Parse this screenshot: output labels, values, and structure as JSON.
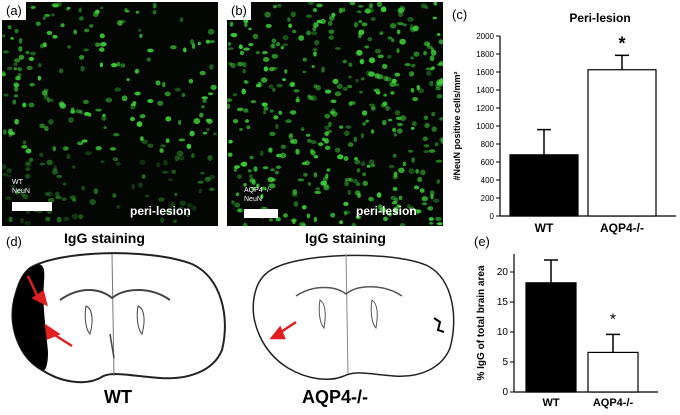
{
  "panel_a": {
    "letter": "(a)",
    "label_line1": "WT",
    "label_line2": "NeuN",
    "region_text": "peri-lesion",
    "cell_color": "#3fd23a"
  },
  "panel_b": {
    "letter": "(b)",
    "label_line1": "AQP4 -/-",
    "label_line2": "NeuN",
    "region_text": "peri-lesion",
    "cell_color": "#3fd23a"
  },
  "panel_c": {
    "letter": "(c)",
    "significance_mark": "*"
  },
  "panel_d": {
    "letter": "(d)",
    "left_title": "IgG staining",
    "right_title": "IgG staining",
    "left_label": "WT",
    "right_label": "AQP4-/-",
    "arrow_color": "#e02020"
  },
  "panel_e": {
    "letter": "(e)",
    "significance_mark": "*"
  },
  "chart_data": [
    {
      "type": "bar",
      "title": "Peri-lesion",
      "categories": [
        "WT",
        "AQP4-/-"
      ],
      "values": [
        680,
        1625
      ],
      "errors": [
        280,
        160
      ],
      "bar_fill": [
        "#000000",
        "#ffffff"
      ],
      "ylabel": "#NeuN positive cells/mm²",
      "ylim": [
        0,
        2000
      ],
      "yticks": [
        "0",
        "200",
        "400",
        "600",
        "800",
        "1000",
        "1200",
        "1400",
        "1600",
        "1800",
        "2000"
      ],
      "grid": false
    },
    {
      "type": "bar",
      "title": "",
      "categories": [
        "WT",
        "AQP4-/-"
      ],
      "values": [
        18.2,
        6.6
      ],
      "errors": [
        3.8,
        3.0
      ],
      "bar_fill": [
        "#000000",
        "#ffffff"
      ],
      "ylabel": "% IgG of total brain area",
      "ylim": [
        0,
        23
      ],
      "yticks": [
        "0",
        "5",
        "10",
        "15",
        "20"
      ],
      "grid": false
    }
  ]
}
